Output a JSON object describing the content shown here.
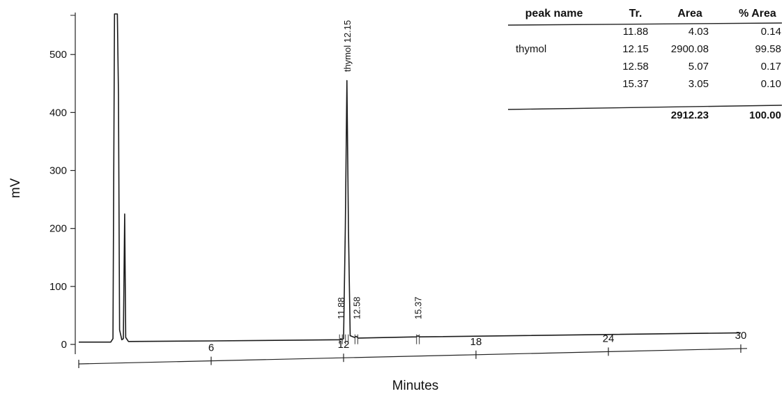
{
  "chart_data": {
    "type": "line",
    "xlabel": "Minutes",
    "ylabel": "mV",
    "xlim": [
      0,
      30
    ],
    "ylim": [
      0,
      570
    ],
    "x_ticks": [
      {
        "value": 6,
        "label": "6"
      },
      {
        "value": 12,
        "label": "12"
      },
      {
        "value": 18,
        "label": "18"
      },
      {
        "value": 24,
        "label": "24"
      },
      {
        "value": 30,
        "label": "30"
      }
    ],
    "y_ticks": [
      {
        "value": 0,
        "label": "0"
      },
      {
        "value": 100,
        "label": "100"
      },
      {
        "value": 200,
        "label": "200"
      },
      {
        "value": 300,
        "label": "300"
      },
      {
        "value": 400,
        "label": "400"
      },
      {
        "value": 500,
        "label": "500"
      }
    ],
    "series": [
      {
        "points": [
          [
            0,
            4
          ],
          [
            1.45,
            4
          ],
          [
            1.55,
            10
          ],
          [
            1.62,
            570
          ],
          [
            1.75,
            570
          ],
          [
            1.8,
            430
          ],
          [
            1.85,
            25
          ],
          [
            1.95,
            8
          ],
          [
            2.02,
            10
          ],
          [
            2.08,
            225
          ],
          [
            2.13,
            12
          ],
          [
            2.25,
            5
          ],
          [
            6,
            6
          ],
          [
            11.85,
            8
          ],
          [
            11.88,
            10
          ],
          [
            11.91,
            8
          ],
          [
            12.0,
            10
          ],
          [
            12.08,
            200
          ],
          [
            12.15,
            455
          ],
          [
            12.22,
            200
          ],
          [
            12.3,
            15
          ],
          [
            12.5,
            12
          ],
          [
            12.58,
            14
          ],
          [
            12.66,
            11
          ],
          [
            15.3,
            13
          ],
          [
            15.37,
            15
          ],
          [
            15.44,
            13
          ],
          [
            30,
            20
          ]
        ]
      }
    ],
    "peaks": [
      {
        "label": "thymol 12.15",
        "x": 12.15
      },
      {
        "label": "11.88",
        "x": 11.88
      },
      {
        "label": "12.58",
        "x": 12.58
      },
      {
        "label": "15.37",
        "x": 15.37
      }
    ]
  },
  "peak_table": {
    "headers": [
      "peak name",
      "Tr.",
      "Area",
      "% Area"
    ],
    "rows": [
      [
        "",
        "11.88",
        "4.03",
        "0.14"
      ],
      [
        "thymol",
        "12.15",
        "2900.08",
        "99.58"
      ],
      [
        "",
        "12.58",
        "5.07",
        "0.17"
      ],
      [
        "",
        "15.37",
        "3.05",
        "0.10"
      ]
    ],
    "total": [
      "",
      "",
      "2912.23",
      "100.00"
    ]
  }
}
